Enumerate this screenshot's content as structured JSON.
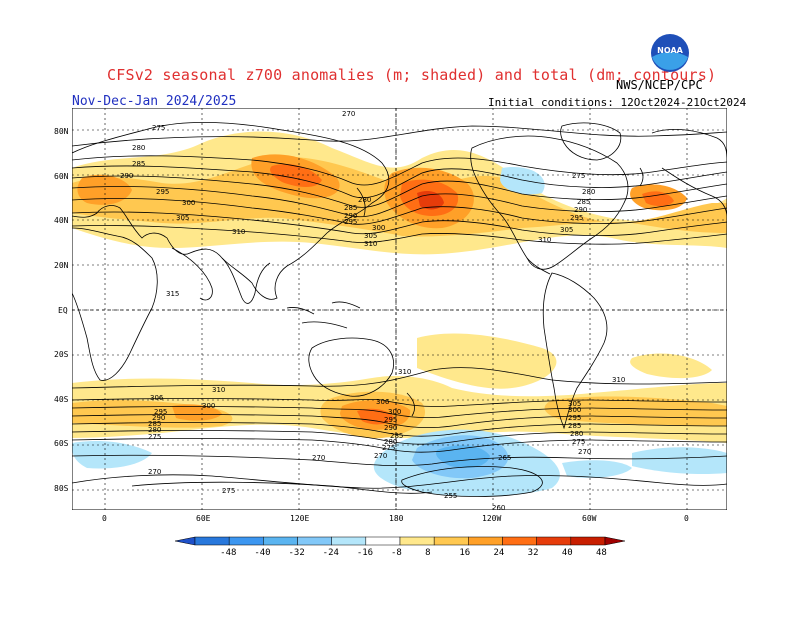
{
  "title": "CFSv2 seasonal z700 anomalies (m; shaded) and total (dm; contours)",
  "agency": "NWS/NCEP/CPC",
  "period": "Nov-Dec-Jan 2024/2025",
  "initial_conditions": "Initial conditions: 12Oct2024-21Oct2024",
  "logo_text": "NOAA",
  "lat_labels": [
    "80N",
    "60N",
    "40N",
    "20N",
    "EQ",
    "20S",
    "40S",
    "60S",
    "80S"
  ],
  "lon_labels": [
    "0",
    "60E",
    "120E",
    "180",
    "120W",
    "60W",
    "0"
  ],
  "colorbar": {
    "labels": [
      "-48",
      "-40",
      "-32",
      "-24",
      "-16",
      "-8",
      "8",
      "16",
      "24",
      "32",
      "40",
      "48"
    ],
    "colors": [
      "#1e50c8",
      "#2878dc",
      "#3c96f0",
      "#5ab4f0",
      "#82c8f8",
      "#b4e6fa",
      "#ffffff",
      "#ffe88c",
      "#ffc850",
      "#ffa028",
      "#ff6e14",
      "#e63c0a",
      "#c81e00",
      "#a00000"
    ]
  },
  "contour_labels": [
    "275",
    "280",
    "285",
    "290",
    "295",
    "300",
    "305",
    "310",
    "315",
    "270",
    "265",
    "260",
    "255",
    "300",
    "310",
    "306",
    "295"
  ]
}
